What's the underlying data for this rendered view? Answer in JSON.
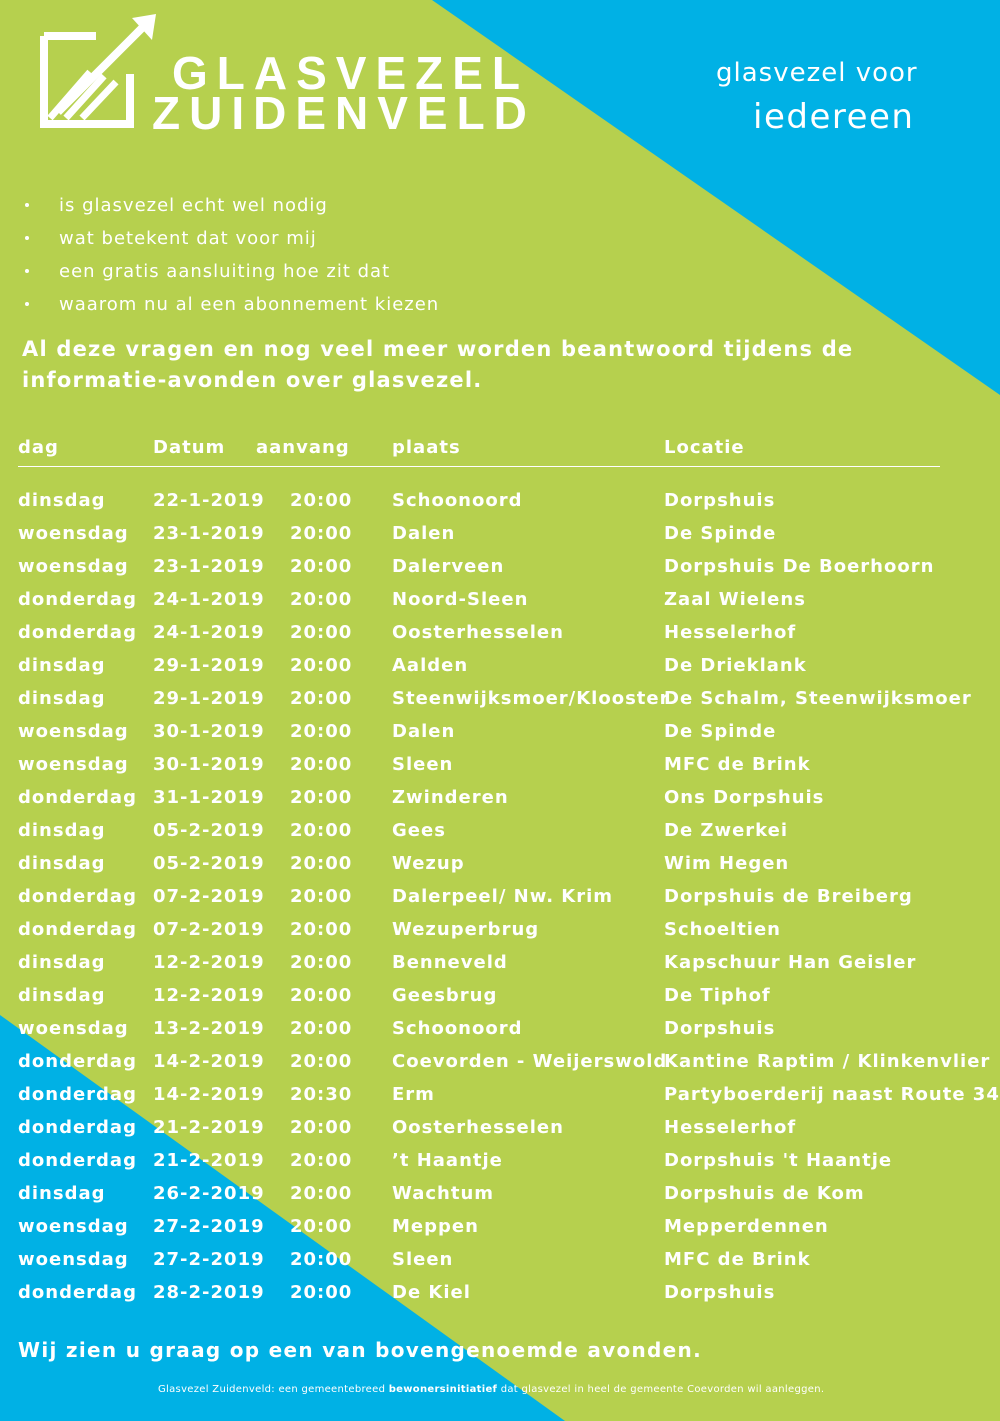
{
  "colors": {
    "green": "#b6d04e",
    "blue": "#00b1e5",
    "text": "#ffffff"
  },
  "brand": {
    "line1": "GLASVEZEL",
    "line2": "ZUIDENVELD",
    "logo_icon": "rising-arrow-chart-icon"
  },
  "tagline": {
    "line1": "glasvezel voor",
    "line2": "iedereen"
  },
  "bullets": [
    "is glasvezel echt wel nodig",
    "wat betekent dat voor mij",
    "een gratis aansluiting hoe zit dat",
    "waarom nu al een abonnement kiezen"
  ],
  "intro": "Al deze vragen en nog veel meer worden beantwoord tijdens de informatie-avonden over glasvezel.",
  "table": {
    "headers": {
      "dag": "dag",
      "datum": "Datum",
      "aanvang": "aanvang",
      "plaats": "plaats",
      "locatie": "Locatie"
    },
    "rows": [
      [
        "dinsdag",
        "22-1-2019",
        "20:00",
        "Schoonoord",
        "Dorpshuis"
      ],
      [
        "woensdag",
        "23-1-2019",
        "20:00",
        "Dalen",
        "De Spinde"
      ],
      [
        "woensdag",
        "23-1-2019",
        "20:00",
        "Dalerveen",
        "Dorpshuis De Boerhoorn"
      ],
      [
        "donderdag",
        "24-1-2019",
        "20:00",
        "Noord-Sleen",
        "Zaal Wielens"
      ],
      [
        "donderdag",
        "24-1-2019",
        "20:00",
        "Oosterhesselen",
        "Hesselerhof"
      ],
      [
        "dinsdag",
        "29-1-2019",
        "20:00",
        "Aalden",
        "De Drieklank"
      ],
      [
        "dinsdag",
        "29-1-2019",
        "20:00",
        "Steenwijksmoer/Klooster",
        "De Schalm, Steenwijksmoer"
      ],
      [
        "woensdag",
        "30-1-2019",
        "20:00",
        "Dalen",
        "De Spinde"
      ],
      [
        "woensdag",
        "30-1-2019",
        "20:00",
        "Sleen",
        "MFC de Brink"
      ],
      [
        "donderdag",
        "31-1-2019",
        "20:00",
        "Zwinderen",
        "Ons Dorpshuis"
      ],
      [
        "dinsdag",
        "05-2-2019",
        "20:00",
        "Gees",
        "De Zwerkei"
      ],
      [
        "dinsdag",
        "05-2-2019",
        "20:00",
        "Wezup",
        "Wim Hegen"
      ],
      [
        "donderdag",
        "07-2-2019",
        "20:00",
        "Dalerpeel/ Nw. Krim",
        "Dorpshuis de Breiberg"
      ],
      [
        "donderdag",
        "07-2-2019",
        "20:00",
        "Wezuperbrug",
        "Schoeltien"
      ],
      [
        "dinsdag",
        "12-2-2019",
        "20:00",
        "Benneveld",
        "Kapschuur Han Geisler"
      ],
      [
        "dinsdag",
        "12-2-2019",
        "20:00",
        "Geesbrug",
        "De Tiphof"
      ],
      [
        "woensdag",
        "13-2-2019",
        "20:00",
        "Schoonoord",
        "Dorpshuis"
      ],
      [
        "donderdag",
        "14-2-2019",
        "20:00",
        "Coevorden - Weijerswold",
        "Kantine Raptim /  Klinkenvlier"
      ],
      [
        "donderdag",
        "14-2-2019",
        "20:30",
        "Erm",
        "Partyboerderij naast Route 34"
      ],
      [
        "donderdag",
        "21-2-2019",
        "20:00",
        "Oosterhesselen",
        "Hesselerhof"
      ],
      [
        "donderdag",
        "21-2-2019",
        "20:00",
        "’t Haantje",
        "Dorpshuis 't Haantje"
      ],
      [
        "dinsdag",
        "26-2-2019",
        "20:00",
        "Wachtum",
        "Dorpshuis de Kom"
      ],
      [
        "woensdag",
        "27-2-2019",
        "20:00",
        "Meppen",
        "Mepperdennen"
      ],
      [
        "woensdag",
        "27-2-2019",
        "20:00",
        "Sleen",
        "MFC de Brink"
      ],
      [
        "donderdag",
        "28-2-2019",
        "20:00",
        "De Kiel",
        "Dorpshuis"
      ]
    ]
  },
  "outro": "Wij zien u graag op een van bovengenoemde avonden.",
  "footer": {
    "part1": "Glasvezel Zuidenveld: een gemeentebreed ",
    "bold": "bewonersinitiatief",
    "part2": " dat glasvezel in heel de gemeente Coevorden wil aanleggen."
  }
}
